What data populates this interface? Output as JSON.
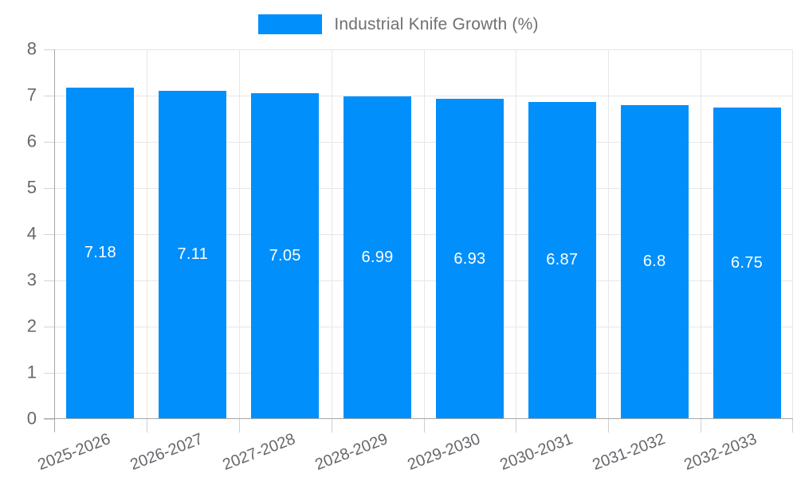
{
  "chart_data": {
    "type": "bar",
    "title": "",
    "legend": {
      "label": "Industrial Knife Growth (%)",
      "position": "top",
      "marker_color": "#008FFB"
    },
    "categories": [
      "2025-2026",
      "2026-2027",
      "2027-2028",
      "2028-2029",
      "2029-2030",
      "2030-2031",
      "2031-2032",
      "2032-2033"
    ],
    "series": [
      {
        "name": "Industrial Knife Growth (%)",
        "values": [
          7.18,
          7.11,
          7.05,
          6.99,
          6.93,
          6.87,
          6.8,
          6.75
        ]
      }
    ],
    "value_labels": [
      "7.18",
      "7.11",
      "7.05",
      "6.99",
      "6.93",
      "6.87",
      "6.8",
      "6.75"
    ],
    "xlabel": "",
    "ylabel": "",
    "ylim": [
      0,
      8
    ],
    "yticks": [
      0,
      1,
      2,
      3,
      4,
      5,
      6,
      7,
      8
    ],
    "grid": true,
    "colors": {
      "bar": "#008FFB",
      "gridline": "#e7e7e7",
      "axis_line": "#a6a6a6",
      "tick": "#cfcfcf",
      "axis_label": "#66686c",
      "legend_text": "#6e7073",
      "value_label": "#ffffff",
      "background": "#ffffff"
    }
  }
}
